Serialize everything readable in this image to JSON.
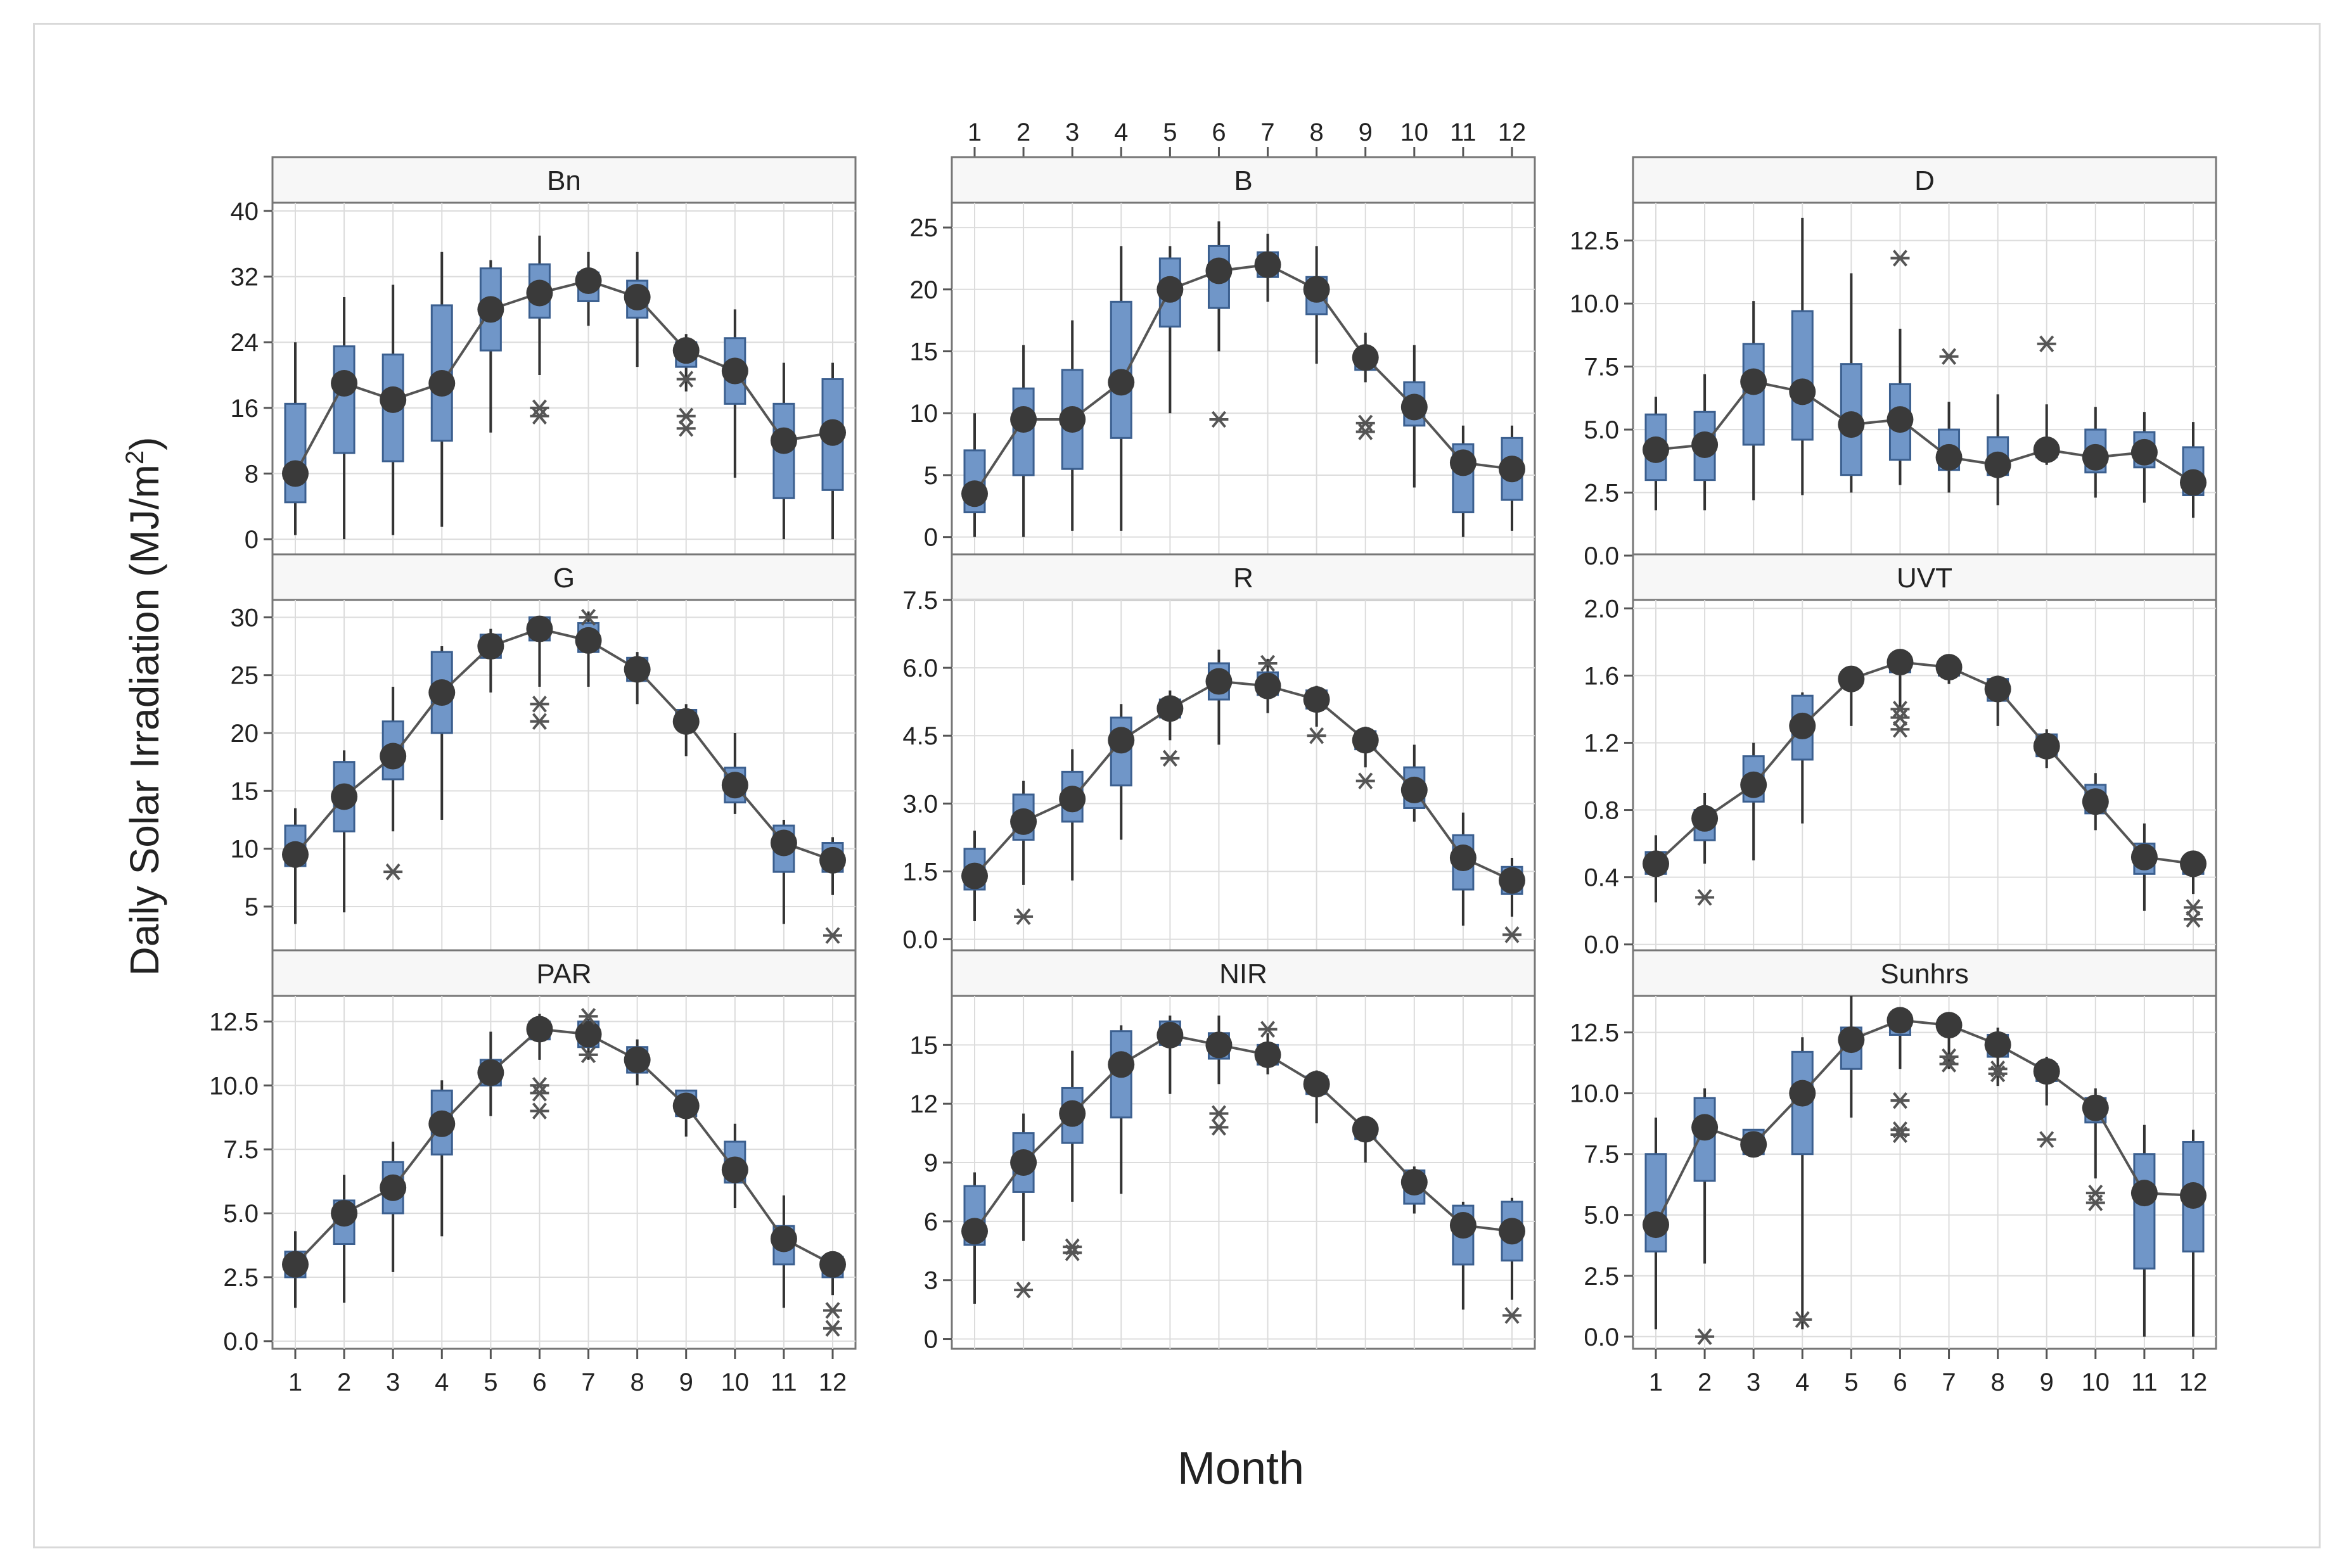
{
  "figure": {
    "ylabel": "Daily Solar Irradiation (MJ/m",
    "ylabel_sup": "2",
    "ylabel_close": ")",
    "xlabel": "Month"
  },
  "colors": {
    "box_fill": "#7096c8",
    "box_stroke": "#3b5f8f",
    "mean_dot": "#3a3a3a",
    "mean_line": "#555555",
    "whisker": "#333333",
    "outlier": "#555555",
    "grid": "#dcdcdc",
    "strip_fill": "#f7f7f7"
  },
  "chart_data": [
    {
      "type": "box",
      "title": "Bn",
      "categories": [
        1,
        2,
        3,
        4,
        5,
        6,
        7,
        8,
        9,
        10,
        11,
        12
      ],
      "yticks": [
        0,
        8,
        16,
        24,
        32,
        40
      ],
      "yticklabels": [
        "0",
        "8",
        "16",
        "24",
        "32",
        "40"
      ],
      "ylim": [
        -2,
        41
      ],
      "x_ticks_top": false,
      "x_ticks_bottom": false,
      "mean": [
        8,
        19,
        17,
        19,
        28,
        30,
        31.5,
        29.5,
        23,
        20.5,
        12,
        13
      ],
      "box_low": [
        4.5,
        10.5,
        9.5,
        12,
        23,
        27,
        29,
        27,
        21,
        16.5,
        5,
        6
      ],
      "box_high": [
        16.5,
        23.5,
        22.5,
        28.5,
        33,
        33.5,
        32.5,
        31.5,
        24,
        24.5,
        16.5,
        19.5
      ],
      "whisker_low": [
        0.5,
        0,
        0.5,
        1.5,
        13,
        20,
        26,
        21,
        18,
        7.5,
        0,
        0
      ],
      "whisker_high": [
        24,
        29.5,
        31,
        35,
        34,
        37,
        35,
        35,
        25,
        28,
        21.5,
        21.5
      ],
      "outliers": [
        [
          6,
          15
        ],
        [
          6,
          16
        ],
        [
          9,
          13.5
        ],
        [
          9,
          15
        ],
        [
          9,
          19.5
        ]
      ]
    },
    {
      "type": "box",
      "title": "B",
      "categories": [
        1,
        2,
        3,
        4,
        5,
        6,
        7,
        8,
        9,
        10,
        11,
        12
      ],
      "yticks": [
        0,
        5,
        10,
        15,
        20,
        25
      ],
      "yticklabels": [
        "0",
        "5",
        "10",
        "15",
        "20",
        "25"
      ],
      "ylim": [
        -1.5,
        27
      ],
      "x_ticks_top": true,
      "x_ticks_bottom": false,
      "mean": [
        3.5,
        9.5,
        9.5,
        12.5,
        20,
        21.5,
        22,
        20,
        14.5,
        10.5,
        6,
        5.5
      ],
      "box_low": [
        2,
        5,
        5.5,
        8,
        17,
        18.5,
        21,
        18,
        13.5,
        9,
        2,
        3
      ],
      "box_high": [
        7,
        12,
        13.5,
        19,
        22.5,
        23.5,
        23,
        21,
        15,
        12.5,
        7.5,
        8
      ],
      "whisker_low": [
        0,
        0,
        0.5,
        0.5,
        10,
        15,
        19,
        14,
        12.5,
        4,
        0,
        0.5
      ],
      "whisker_high": [
        10,
        15.5,
        17.5,
        23.5,
        23.5,
        25.5,
        24.5,
        23.5,
        16.5,
        15.5,
        9,
        9
      ],
      "outliers": [
        [
          6,
          9.5
        ],
        [
          9,
          8.5
        ],
        [
          9,
          9.2
        ]
      ]
    },
    {
      "type": "box",
      "title": "D",
      "categories": [
        1,
        2,
        3,
        4,
        5,
        6,
        7,
        8,
        9,
        10,
        11,
        12
      ],
      "yticks": [
        0,
        2.5,
        5,
        7.5,
        10,
        12.5
      ],
      "yticklabels": [
        "0.0",
        "2.5",
        "5.0",
        "7.5",
        "10.0",
        "12.5"
      ],
      "ylim": [
        0,
        14
      ],
      "x_ticks_top": false,
      "x_ticks_bottom": false,
      "mean": [
        4.2,
        4.4,
        6.9,
        6.5,
        5.2,
        5.4,
        3.9,
        3.6,
        4.2,
        3.9,
        4.1,
        2.9
      ],
      "box_low": [
        3,
        3,
        4.4,
        4.6,
        3.2,
        3.8,
        3.4,
        3.2,
        3.9,
        3.3,
        3.5,
        2.4
      ],
      "box_high": [
        5.6,
        5.7,
        8.4,
        9.7,
        7.6,
        6.8,
        5,
        4.7,
        4.4,
        5,
        4.9,
        4.3
      ],
      "whisker_low": [
        1.8,
        1.8,
        2.2,
        2.4,
        2.5,
        2.8,
        2.5,
        2,
        3.6,
        2.3,
        2.1,
        1.5
      ],
      "whisker_high": [
        6.3,
        7.2,
        10.1,
        13.4,
        11.2,
        9,
        6.1,
        6.4,
        6,
        5.9,
        5.7,
        5.3
      ],
      "outliers": [
        [
          6,
          11.8
        ],
        [
          7,
          7.9
        ],
        [
          9,
          8.4
        ]
      ]
    },
    {
      "type": "box",
      "title": "G",
      "categories": [
        1,
        2,
        3,
        4,
        5,
        6,
        7,
        8,
        9,
        10,
        11,
        12
      ],
      "yticks": [
        5,
        10,
        15,
        20,
        25,
        30
      ],
      "yticklabels": [
        "5",
        "10",
        "15",
        "20",
        "25",
        "30"
      ],
      "ylim": [
        1,
        31.5
      ],
      "x_ticks_top": false,
      "x_ticks_bottom": false,
      "mean": [
        9.5,
        14.5,
        18,
        23.5,
        27.5,
        29,
        28,
        25.5,
        21,
        15.5,
        10.5,
        9
      ],
      "box_low": [
        8.5,
        11.5,
        16,
        20,
        26.5,
        28,
        27,
        24.5,
        20.5,
        14,
        8,
        8
      ],
      "box_high": [
        12,
        17.5,
        21,
        27,
        28.5,
        30,
        29.5,
        26.5,
        22,
        17,
        12,
        10.5
      ],
      "whisker_low": [
        3.5,
        4.5,
        11.5,
        12.5,
        23.5,
        24,
        24,
        22.5,
        18,
        13,
        3.5,
        6
      ],
      "whisker_high": [
        13.5,
        18.5,
        24,
        27.5,
        29,
        30,
        30.5,
        27,
        22.5,
        20,
        12.5,
        11
      ],
      "outliers": [
        [
          3,
          8
        ],
        [
          6,
          21
        ],
        [
          6,
          22.5
        ],
        [
          7,
          30
        ],
        [
          12,
          2.5
        ]
      ]
    },
    {
      "type": "box",
      "title": "R",
      "categories": [
        1,
        2,
        3,
        4,
        5,
        6,
        7,
        8,
        9,
        10,
        11,
        12
      ],
      "yticks": [
        0,
        1.5,
        3,
        4.5,
        6,
        7.5
      ],
      "yticklabels": [
        "0.0",
        "1.5",
        "3.0",
        "4.5",
        "6.0",
        "7.5"
      ],
      "ylim": [
        -0.3,
        7.5
      ],
      "x_ticks_top": false,
      "x_ticks_bottom": false,
      "mean": [
        1.4,
        2.6,
        3.1,
        4.4,
        5.1,
        5.7,
        5.6,
        5.3,
        4.4,
        3.3,
        1.8,
        1.3
      ],
      "box_low": [
        1.1,
        2.2,
        2.6,
        3.4,
        4.9,
        5.3,
        5.4,
        5.1,
        4.2,
        2.9,
        1.1,
        1
      ],
      "box_high": [
        2,
        3.2,
        3.7,
        4.9,
        5.3,
        6.1,
        5.9,
        5.5,
        4.6,
        3.8,
        2.3,
        1.6
      ],
      "whisker_low": [
        0.4,
        1.2,
        1.3,
        2.2,
        4.4,
        4.3,
        5,
        4.7,
        3.8,
        2.6,
        0.3,
        0.5
      ],
      "whisker_high": [
        2.4,
        3.5,
        4.2,
        5.2,
        5.5,
        6.4,
        6.2,
        5.6,
        4.7,
        4.3,
        2.8,
        1.8
      ],
      "outliers": [
        [
          2,
          0.5
        ],
        [
          5,
          4
        ],
        [
          7,
          6.1
        ],
        [
          8,
          4.5
        ],
        [
          9,
          3.5
        ],
        [
          12,
          0.1
        ]
      ]
    },
    {
      "type": "box",
      "title": "UVT",
      "categories": [
        1,
        2,
        3,
        4,
        5,
        6,
        7,
        8,
        9,
        10,
        11,
        12
      ],
      "yticks": [
        0,
        0.4,
        0.8,
        1.2,
        1.6,
        2.0
      ],
      "yticklabels": [
        "0.0",
        "0.4",
        "0.8",
        "1.2",
        "1.6",
        "2.0"
      ],
      "ylim": [
        -0.05,
        2.05
      ],
      "x_ticks_top": false,
      "x_ticks_bottom": false,
      "mean": [
        0.48,
        0.75,
        0.95,
        1.3,
        1.58,
        1.68,
        1.65,
        1.52,
        1.18,
        0.85,
        0.52,
        0.48
      ],
      "box_low": [
        0.42,
        0.62,
        0.85,
        1.1,
        1.55,
        1.62,
        1.6,
        1.45,
        1.12,
        0.78,
        0.42,
        0.42
      ],
      "box_high": [
        0.55,
        0.8,
        1.12,
        1.48,
        1.62,
        1.72,
        1.68,
        1.58,
        1.25,
        0.95,
        0.6,
        0.52
      ],
      "whisker_low": [
        0.25,
        0.48,
        0.5,
        0.72,
        1.3,
        1.4,
        1.55,
        1.3,
        1.05,
        0.68,
        0.2,
        0.3
      ],
      "whisker_high": [
        0.65,
        0.9,
        1.2,
        1.5,
        1.65,
        1.75,
        1.72,
        1.6,
        1.28,
        1.02,
        0.72,
        0.55
      ],
      "outliers": [
        [
          2,
          0.28
        ],
        [
          6,
          1.28
        ],
        [
          6,
          1.35
        ],
        [
          6,
          1.4
        ],
        [
          12,
          0.15
        ],
        [
          12,
          0.22
        ]
      ]
    },
    {
      "type": "box",
      "title": "PAR",
      "categories": [
        1,
        2,
        3,
        4,
        5,
        6,
        7,
        8,
        9,
        10,
        11,
        12
      ],
      "yticks": [
        0,
        2.5,
        5,
        7.5,
        10,
        12.5
      ],
      "yticklabels": [
        "0.0",
        "2.5",
        "5.0",
        "7.5",
        "10.0",
        "12.5"
      ],
      "ylim": [
        -0.3,
        13.5
      ],
      "x_ticks_top": false,
      "x_ticks_bottom": true,
      "mean": [
        3,
        5,
        6,
        8.5,
        10.5,
        12.2,
        12,
        11,
        9.2,
        6.7,
        4,
        3
      ],
      "box_low": [
        2.5,
        3.8,
        5,
        7.3,
        10,
        11.8,
        11.5,
        10.5,
        8.8,
        6.2,
        3,
        2.5
      ],
      "box_high": [
        3.5,
        5.5,
        7,
        9.8,
        11,
        12.5,
        12.5,
        11.5,
        9.8,
        7.8,
        4.5,
        3.3
      ],
      "whisker_low": [
        1.3,
        1.5,
        2.7,
        4.1,
        8.8,
        11,
        11,
        10,
        8,
        5.2,
        1.3,
        1.8
      ],
      "whisker_high": [
        4.3,
        6.5,
        7.8,
        10.2,
        12.1,
        12.8,
        12.6,
        11.8,
        9.8,
        8.5,
        5.7,
        3.5
      ],
      "outliers": [
        [
          6,
          9
        ],
        [
          6,
          9.7
        ],
        [
          6,
          10
        ],
        [
          7,
          11.2
        ],
        [
          7,
          12.7
        ],
        [
          12,
          0.5
        ],
        [
          12,
          1.2
        ]
      ]
    },
    {
      "type": "box",
      "title": "NIR",
      "categories": [
        1,
        2,
        3,
        4,
        5,
        6,
        7,
        8,
        9,
        10,
        11,
        12
      ],
      "yticks": [
        0,
        3,
        6,
        9,
        12,
        15
      ],
      "yticklabels": [
        "0",
        "3",
        "6",
        "9",
        "12",
        "15"
      ],
      "ylim": [
        -0.5,
        17.5
      ],
      "x_ticks_top": false,
      "x_ticks_bottom": false,
      "mean": [
        5.5,
        9,
        11.5,
        14,
        15.5,
        15,
        14.5,
        13,
        10.7,
        8,
        5.8,
        5.5
      ],
      "box_low": [
        4.8,
        7.5,
        10,
        11.3,
        15,
        14.3,
        14,
        12.5,
        10.2,
        6.9,
        3.8,
        4
      ],
      "box_high": [
        7.8,
        10.5,
        12.8,
        15.7,
        16.2,
        15.6,
        15,
        13.4,
        11,
        8.6,
        6.8,
        7
      ],
      "whisker_low": [
        1.8,
        5,
        7,
        7.4,
        12.5,
        13,
        13.5,
        11,
        9,
        6.4,
        1.5,
        2
      ],
      "whisker_high": [
        8.5,
        11.5,
        14.7,
        16,
        16.5,
        16.5,
        15.6,
        13.7,
        11.2,
        8.8,
        7,
        7.2
      ],
      "outliers": [
        [
          2,
          2.5
        ],
        [
          3,
          4.4
        ],
        [
          3,
          4.7
        ],
        [
          6,
          10.8
        ],
        [
          6,
          11.5
        ],
        [
          7,
          15.8
        ],
        [
          12,
          1.2
        ]
      ]
    },
    {
      "type": "box",
      "title": "Sunhrs",
      "categories": [
        1,
        2,
        3,
        4,
        5,
        6,
        7,
        8,
        9,
        10,
        11,
        12
      ],
      "yticks": [
        0,
        2.5,
        5,
        7.5,
        10,
        12.5
      ],
      "yticklabels": [
        "0.0",
        "2.5",
        "5.0",
        "7.5",
        "10.0",
        "12.5"
      ],
      "ylim": [
        -0.5,
        14
      ],
      "x_ticks_top": false,
      "x_ticks_bottom": true,
      "mean": [
        4.6,
        8.6,
        7.9,
        10,
        12.2,
        13,
        12.8,
        12,
        10.9,
        9.4,
        5.9,
        5.8
      ],
      "box_low": [
        3.5,
        6.4,
        7.5,
        7.5,
        11,
        12.4,
        12.5,
        11.5,
        10.5,
        8.8,
        2.8,
        3.5
      ],
      "box_high": [
        7.5,
        9.8,
        8.5,
        11.7,
        12.7,
        13.2,
        13.1,
        12.4,
        11.2,
        9.8,
        7.5,
        8
      ],
      "whisker_low": [
        0.3,
        3,
        7.5,
        0.3,
        9,
        11,
        11,
        10.3,
        9.5,
        6.5,
        0,
        0
      ],
      "whisker_high": [
        9,
        10.2,
        8.5,
        12.3,
        14,
        13.5,
        13.3,
        12.7,
        11.5,
        10.2,
        8.7,
        8.5
      ],
      "outliers": [
        [
          2,
          0
        ],
        [
          4,
          0.7
        ],
        [
          6,
          8.3
        ],
        [
          6,
          8.5
        ],
        [
          6,
          9.7
        ],
        [
          7,
          11.2
        ],
        [
          7,
          11.5
        ],
        [
          8,
          10.8
        ],
        [
          8,
          11
        ],
        [
          9,
          8.1
        ],
        [
          10,
          5.5
        ],
        [
          10,
          5.9
        ]
      ]
    }
  ]
}
